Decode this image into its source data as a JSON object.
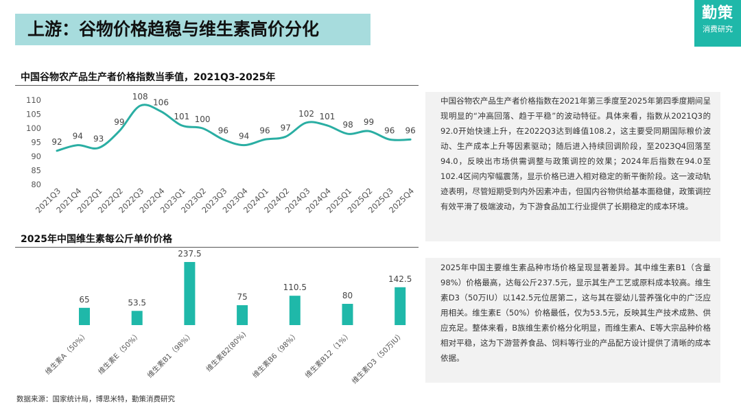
{
  "header": {
    "title": "上游：谷物价格趋稳与维生素高价分化"
  },
  "logo": {
    "main": "勤策",
    "sub": "消费研究"
  },
  "section1": {
    "title": "中国谷物农产品生产者价格指数当季值，2021Q3-2025年",
    "description": "中国谷物农产品生产者价格指数在2021年第三季度至2025年第四季度期间呈现明显的“冲高回落、趋于平稳”的波动特征。具体来看，指数从2021Q3的92.0开始快速上升，在2022Q3达到峰值108.2，这主要受同期国际粮价波动、生产成本上升等因素驱动；随后进入持续回调阶段，至2023Q4回落至94.0，反映出市场供需调整与政策调控的效果；2024年后指数在94.0至102.4区间内窄幅震荡，显示价格已进入相对稳定的新平衡阶段。这一波动轨迹表明，尽管短期受到内外因素冲击，但国内谷物供给基本面稳健，政策调控有效平滑了极端波动，为下游食品加工行业提供了长期稳定的成本环境。"
  },
  "section2": {
    "title": "2025年中国维生素每公斤单价价格",
    "description": "2025年中国主要维生素品种市场价格呈现显著差异。其中维生素B1（含量98%）价格最高，达每公斤237.5元，显示其生产工艺或原料成本较高。维生素D3（50万IU）以142.5元位居第二，这与其在婴幼儿营养强化中的广泛应用相关。维生素E（50%）价格最低，仅为53.5元，反映其生产技术成熟、供应充足。整体来看，B族维生素价格分化明显，而维生素A、E等大宗品种价格相对平稳，这为下游营养食品、饲料等行业的产品配方设计提供了清晰的成本依据。"
  },
  "source": "数据来源：国家统计局，博思米特，勤策消费研究",
  "chart_data": [
    {
      "type": "line",
      "title": "中国谷物农产品生产者价格指数当季值，2021Q3-2025年",
      "categories": [
        "2021Q3",
        "2021Q4",
        "2022Q1",
        "2022Q2",
        "2022Q3",
        "2022Q4",
        "2023Q1",
        "2023Q2",
        "2023Q3",
        "2023Q4",
        "2024Q1",
        "2024Q2",
        "2024Q3",
        "2024Q4",
        "2025Q1",
        "2025Q2",
        "2025Q3",
        "2025Q4"
      ],
      "values": [
        92,
        94,
        93,
        99,
        108,
        106,
        101,
        100,
        96,
        94,
        96,
        97,
        102,
        101,
        98,
        99,
        96,
        96
      ],
      "labels": [
        "92",
        "94",
        "93",
        "99",
        "108",
        "106",
        "101",
        "100",
        "96",
        "94",
        "96",
        "97",
        "102",
        "101",
        "98",
        "99",
        "96",
        "96"
      ],
      "ylim": [
        80,
        110
      ],
      "yticks": [
        "110",
        "105",
        "100",
        "95",
        "90",
        "85",
        "80"
      ],
      "color": "#2aaea3"
    },
    {
      "type": "bar",
      "title": "2025年中国维生素每公斤单价价格",
      "categories": [
        "维生素A（50%）",
        "维生素E（50%）",
        "维生素B1（98%）",
        "维生素B2(80%)",
        "维生素B6（98%）",
        "维生素B12（1%）",
        "维生素D3（50万IU）"
      ],
      "values": [
        65,
        53.5,
        237.5,
        75,
        110.5,
        80,
        142.5
      ],
      "labels": [
        "65",
        "53.5",
        "237.5",
        "75",
        "110.5",
        "80",
        "142.5"
      ],
      "ylim": [
        0,
        250
      ],
      "color": "#1fb8a9"
    }
  ]
}
